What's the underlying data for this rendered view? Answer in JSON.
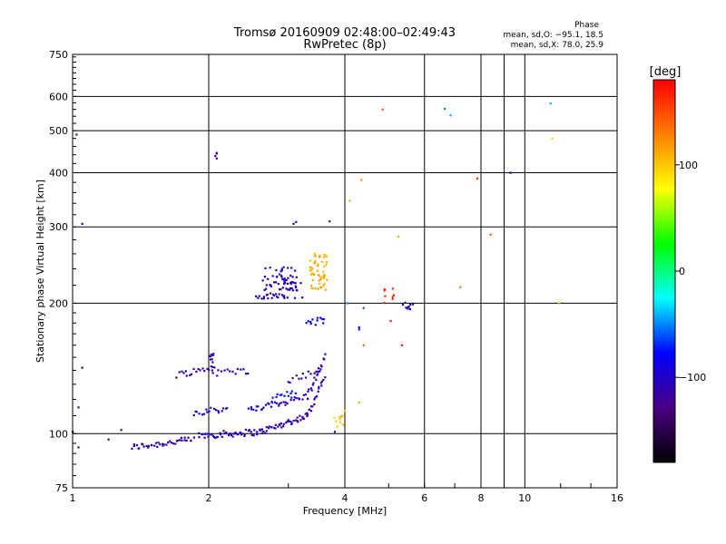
{
  "chart_data": {
    "type": "scatter",
    "title_line1": "Tromsø 20160909 02:48:00–02:49:43",
    "title_line2": "RwPretec (8p)",
    "xlabel": "Frequency [MHz]",
    "ylabel": "Stationary phase Virtual Height [km]",
    "x_scale": "log",
    "y_scale": "log",
    "xlim": [
      1,
      16
    ],
    "ylim": [
      75,
      750
    ],
    "x_ticks": [
      1,
      2,
      4,
      6,
      8,
      10,
      16
    ],
    "x_tick_labels": [
      "1",
      "2",
      "4",
      "6",
      "8",
      "10",
      "16"
    ],
    "y_ticks": [
      75,
      100,
      200,
      300,
      400,
      500,
      600,
      750
    ],
    "y_tick_labels": [
      "75",
      "100",
      "200",
      "300",
      "400",
      "500",
      "600",
      "750"
    ],
    "grid": true,
    "stats": {
      "heading": "Phase",
      "line_o": "mean, sd,O: −95.1, 18.5",
      "line_x": "mean, sd,X: 78.0, 25.9"
    },
    "colorbar": {
      "label": "[deg]",
      "range": [
        -180,
        180
      ],
      "ticks": [
        100,
        0,
        -100
      ],
      "tick_labels": [
        "100",
        "0",
        "−100"
      ],
      "colors": [
        "#000000",
        "#4b0082",
        "#0000ff",
        "#00ffff",
        "#00ff00",
        "#ffff00",
        "#ff8000",
        "#ff0000"
      ]
    },
    "points_traces": [
      {
        "from": [
          1.35,
          93
        ],
        "to": [
          1.85,
          97
        ],
        "n": 40,
        "phase": -110
      },
      {
        "from": [
          1.9,
          99
        ],
        "to": [
          2.6,
          101
        ],
        "n": 45,
        "phase": -105
      },
      {
        "from": [
          2.6,
          101
        ],
        "to": [
          3.3,
          110
        ],
        "n": 40,
        "phase": -110
      },
      {
        "from": [
          3.3,
          110
        ],
        "to": [
          3.6,
          135
        ],
        "n": 20,
        "phase": -110
      },
      {
        "from": [
          2.45,
          113
        ],
        "to": [
          3.3,
          122
        ],
        "n": 35,
        "phase": -100
      },
      {
        "from": [
          3.3,
          122
        ],
        "to": [
          3.62,
          150
        ],
        "n": 18,
        "phase": -108
      },
      {
        "from": [
          2.75,
          120
        ],
        "to": [
          3.1,
          125
        ],
        "n": 12,
        "phase": -75
      },
      {
        "from": [
          1.85,
          112
        ],
        "to": [
          2.2,
          114
        ],
        "n": 18,
        "phase": -105
      },
      {
        "from": [
          1.7,
          137
        ],
        "to": [
          2.05,
          142
        ],
        "n": 18,
        "phase": -112
      },
      {
        "from": [
          2.05,
          138
        ],
        "to": [
          2.45,
          140
        ],
        "n": 14,
        "phase": -105
      },
      {
        "from": [
          3.0,
          133
        ],
        "to": [
          3.55,
          140
        ],
        "n": 14,
        "phase": -112
      },
      {
        "from": [
          2.55,
          207
        ],
        "to": [
          2.95,
          208
        ],
        "n": 18,
        "phase": -110
      },
      {
        "from": [
          3.3,
          180
        ],
        "to": [
          3.6,
          183
        ],
        "n": 12,
        "phase": -75
      }
    ],
    "points_clusters": [
      {
        "center": [
          2.88,
          225
        ],
        "dx": 0.09,
        "dy": 0.08,
        "n": 55,
        "phase": -108
      },
      {
        "center": [
          3.5,
          237
        ],
        "dx": 0.045,
        "dy": 0.1,
        "n": 55,
        "phase": 110
      },
      {
        "center": [
          3.08,
          218
        ],
        "dx": 0.05,
        "dy": 0.06,
        "n": 12,
        "phase": -95
      },
      {
        "center": [
          5.0,
          208
        ],
        "dx": 0.03,
        "dy": 0.04,
        "n": 8,
        "phase": 165
      },
      {
        "center": [
          5.5,
          197
        ],
        "dx": 0.03,
        "dy": 0.02,
        "n": 10,
        "phase": -105
      },
      {
        "center": [
          2.05,
          147
        ],
        "dx": 0.02,
        "dy": 0.04,
        "n": 10,
        "phase": -110
      },
      {
        "center": [
          3.85,
          107
        ],
        "dx": 0.03,
        "dy": 0.03,
        "n": 8,
        "phase": 100
      },
      {
        "center": [
          2.07,
          440
        ],
        "dx": 0.015,
        "dy": 0.02,
        "n": 4,
        "phase": -115
      }
    ],
    "points_isolated": [
      [
        1.02,
        490,
        -110
      ],
      [
        1.05,
        305,
        -80
      ],
      [
        1.05,
        142,
        -110
      ],
      [
        1.03,
        115,
        -110
      ],
      [
        1.0,
        101,
        -110
      ],
      [
        1.03,
        93,
        -110
      ],
      [
        1.2,
        97,
        -120
      ],
      [
        1.28,
        102,
        -110
      ],
      [
        3.08,
        305,
        -120
      ],
      [
        3.12,
        308,
        -115
      ],
      [
        3.7,
        309,
        -120
      ],
      [
        4.85,
        560,
        150
      ],
      [
        4.35,
        385,
        120
      ],
      [
        4.1,
        345,
        110
      ],
      [
        5.25,
        285,
        110
      ],
      [
        4.05,
        200,
        -50
      ],
      [
        4.4,
        195,
        -60
      ],
      [
        4.3,
        174,
        -90
      ],
      [
        4.3,
        176,
        -100
      ],
      [
        5.05,
        182,
        170
      ],
      [
        5.35,
        160,
        170
      ],
      [
        4.4,
        160,
        140
      ],
      [
        4.3,
        118,
        110
      ],
      [
        4.0,
        113,
        100
      ],
      [
        3.95,
        110,
        110
      ],
      [
        3.8,
        101,
        -100
      ],
      [
        6.65,
        562,
        -50
      ],
      [
        6.85,
        543,
        -40
      ],
      [
        7.85,
        388,
        160
      ],
      [
        8.4,
        288,
        145
      ],
      [
        7.2,
        218,
        130
      ],
      [
        9.3,
        400,
        -90
      ],
      [
        11.4,
        578,
        -40
      ],
      [
        11.5,
        480,
        95
      ],
      [
        11.9,
        200,
        110
      ]
    ]
  }
}
